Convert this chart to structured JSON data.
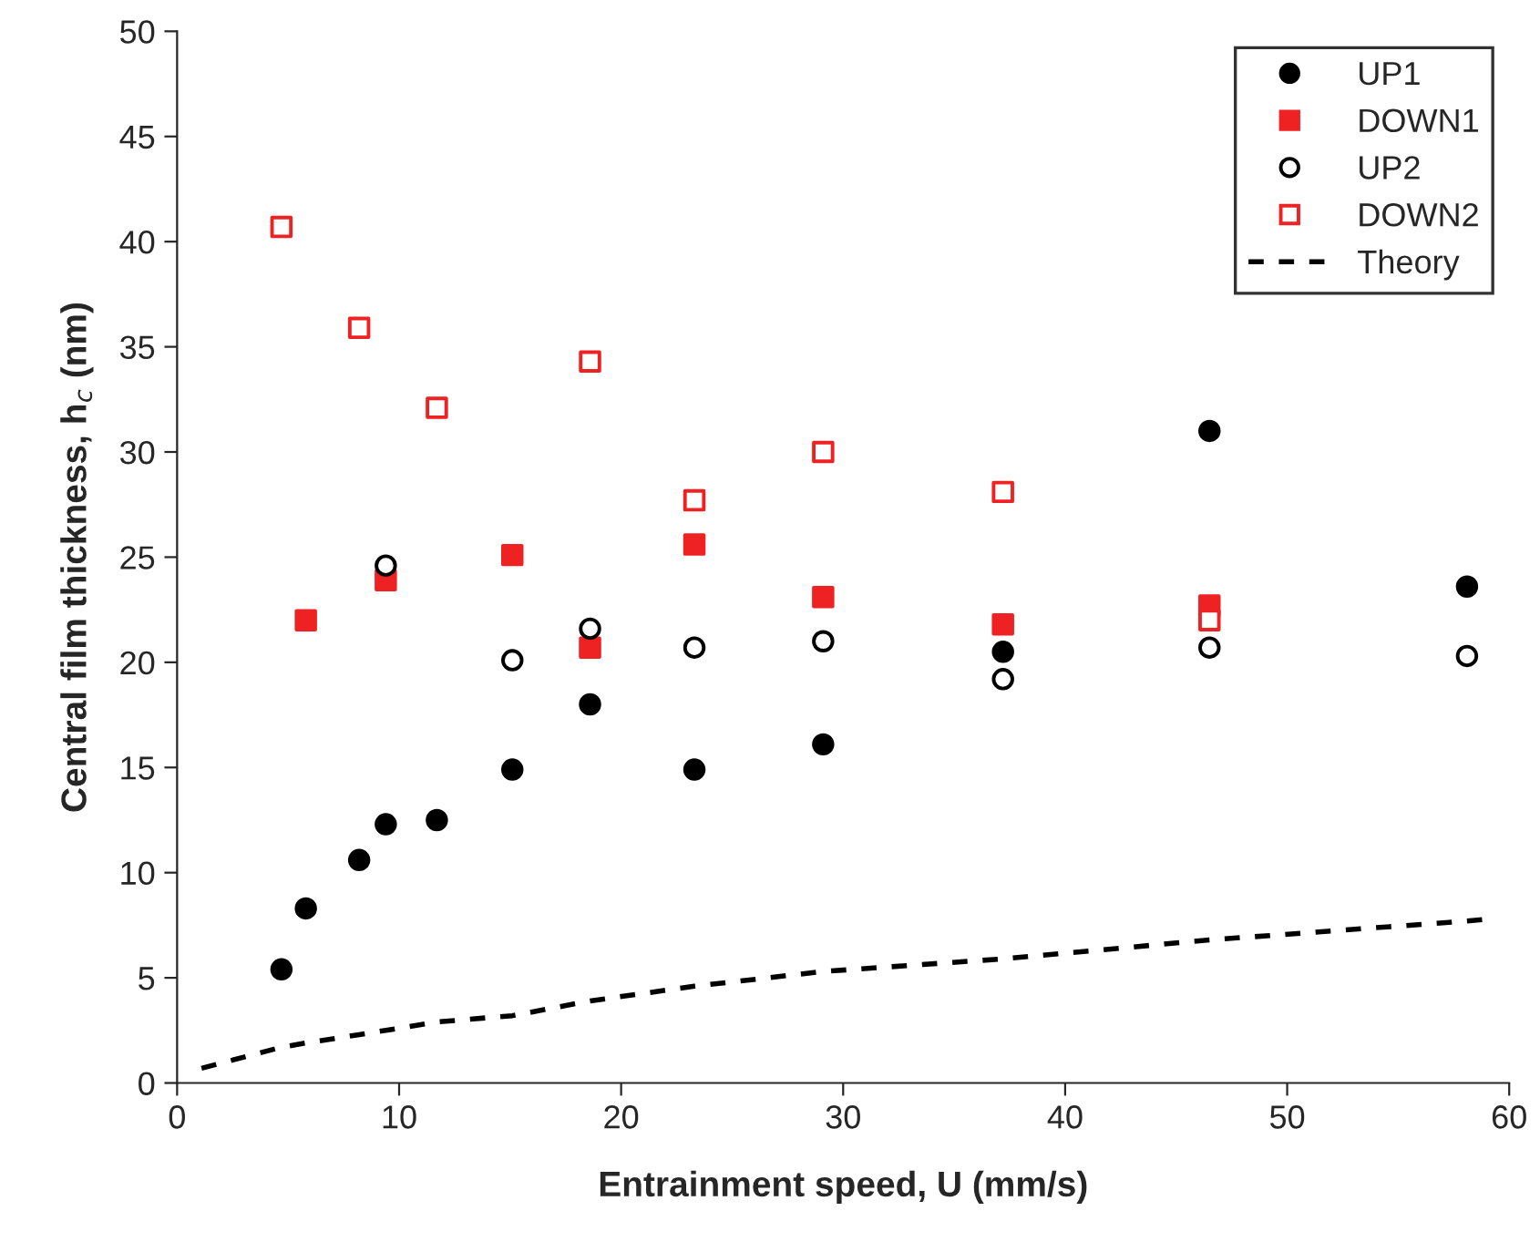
{
  "chart_data": {
    "type": "scatter",
    "xlabel": "Entrainment speed, U (mm/s)",
    "ylabel": "Central film thickness, h$_{c}$ (nm)",
    "xlim": [
      0,
      60
    ],
    "xticks": [
      0,
      10,
      20,
      30,
      40,
      50,
      60
    ],
    "ylim": [
      0,
      50
    ],
    "yticks": [
      0,
      5,
      10,
      15,
      20,
      25,
      30,
      35,
      40,
      45,
      50
    ],
    "grid": false,
    "legend": "top right",
    "series": [
      {
        "name": "UP1",
        "color": "#000000",
        "marker": "circle",
        "x": [
          4.7,
          5.8,
          8.2,
          9.4,
          11.7,
          15.1,
          18.6,
          23.3,
          29.1,
          37.2,
          46.5,
          58.1
        ],
        "values": [
          5.4,
          8.3,
          10.6,
          12.3,
          12.5,
          14.9,
          18.0,
          14.9,
          16.1,
          20.5,
          31.0,
          23.6
        ]
      },
      {
        "name": "DOWN1",
        "color": "#ee2222",
        "marker": "square",
        "x": [
          5.8,
          9.4,
          15.1,
          18.6,
          23.3,
          29.1,
          37.2,
          46.5
        ],
        "values": [
          22.0,
          23.9,
          25.1,
          20.7,
          25.6,
          23.1,
          21.8,
          22.7
        ]
      },
      {
        "name": "UP2",
        "color": "#000000",
        "marker": "circle-open",
        "x": [
          9.4,
          15.1,
          18.6,
          23.3,
          29.1,
          37.2,
          46.5,
          58.1
        ],
        "values": [
          24.6,
          20.1,
          21.6,
          20.7,
          21.0,
          19.2,
          20.7,
          20.3
        ]
      },
      {
        "name": "DOWN2",
        "color": "#ee2222",
        "marker": "square-open",
        "x": [
          4.7,
          8.2,
          11.7,
          18.6,
          23.3,
          29.1,
          37.2,
          46.5
        ],
        "values": [
          40.7,
          35.9,
          32.1,
          34.3,
          27.7,
          30.0,
          28.1,
          22.0
        ]
      },
      {
        "name": "Theory",
        "type": "line",
        "line_style": "dashed",
        "marker": "none",
        "color": "#000000",
        "x": [
          1.1,
          4.7,
          5.8,
          8.2,
          9.4,
          11.7,
          15.1,
          18.6,
          23.3,
          29.1,
          37.2,
          46.5,
          58.1,
          59.1
        ],
        "values": [
          0.7,
          1.7,
          1.9,
          2.3,
          2.5,
          2.9,
          3.2,
          3.9,
          4.6,
          5.3,
          5.9,
          6.8,
          7.7,
          7.8
        ]
      }
    ]
  }
}
